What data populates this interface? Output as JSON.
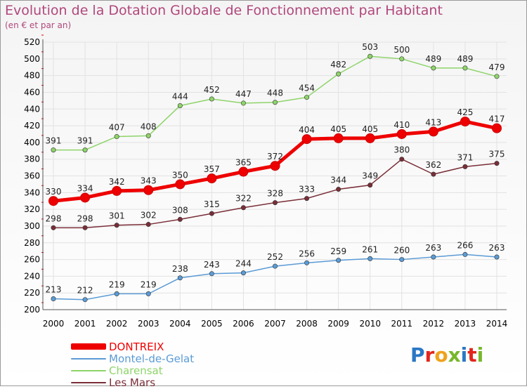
{
  "title": "Evolution de la Dotation Globale de Fonctionnement par Habitant",
  "subtitle": "(en € et par an)",
  "logo": {
    "text": "Proxiti",
    "colors": [
      "#2a78c4",
      "#e2251c",
      "#f0a21c",
      "#76b82a",
      "#2a78c4",
      "#e2251c",
      "#76b82a"
    ]
  },
  "chart_data": {
    "type": "line",
    "categories": [
      "2000",
      "2001",
      "2002",
      "2003",
      "2004",
      "2005",
      "2006",
      "2007",
      "2008",
      "2009",
      "2010",
      "2011",
      "2012",
      "2013",
      "2014"
    ],
    "ylim": [
      200,
      520
    ],
    "yticks": [
      "200",
      "220",
      "240",
      "260",
      "280",
      "300",
      "320",
      "340",
      "360",
      "380",
      "400",
      "420",
      "440",
      "460",
      "480",
      "500",
      "520"
    ],
    "grid": true,
    "legend_position": "bottom-left",
    "series": [
      {
        "name": "DONTREIX",
        "color": "#ee0000",
        "values": [
          330,
          334,
          342,
          343,
          350,
          357,
          365,
          372,
          404,
          405,
          405,
          410,
          413,
          425,
          417
        ]
      },
      {
        "name": "Montel-de-Gelat",
        "color": "#5b9bd5",
        "values": [
          213,
          212,
          219,
          219,
          238,
          243,
          244,
          252,
          256,
          259,
          261,
          260,
          263,
          266,
          263
        ]
      },
      {
        "name": "Charensat",
        "color": "#8ed46a",
        "values": [
          391,
          391,
          407,
          408,
          444,
          452,
          447,
          448,
          454,
          482,
          503,
          500,
          489,
          489,
          479
        ]
      },
      {
        "name": "Les Mars",
        "color": "#7a2e38",
        "values": [
          298,
          298,
          301,
          302,
          308,
          315,
          322,
          328,
          333,
          344,
          349,
          380,
          362,
          371,
          375
        ]
      }
    ]
  }
}
